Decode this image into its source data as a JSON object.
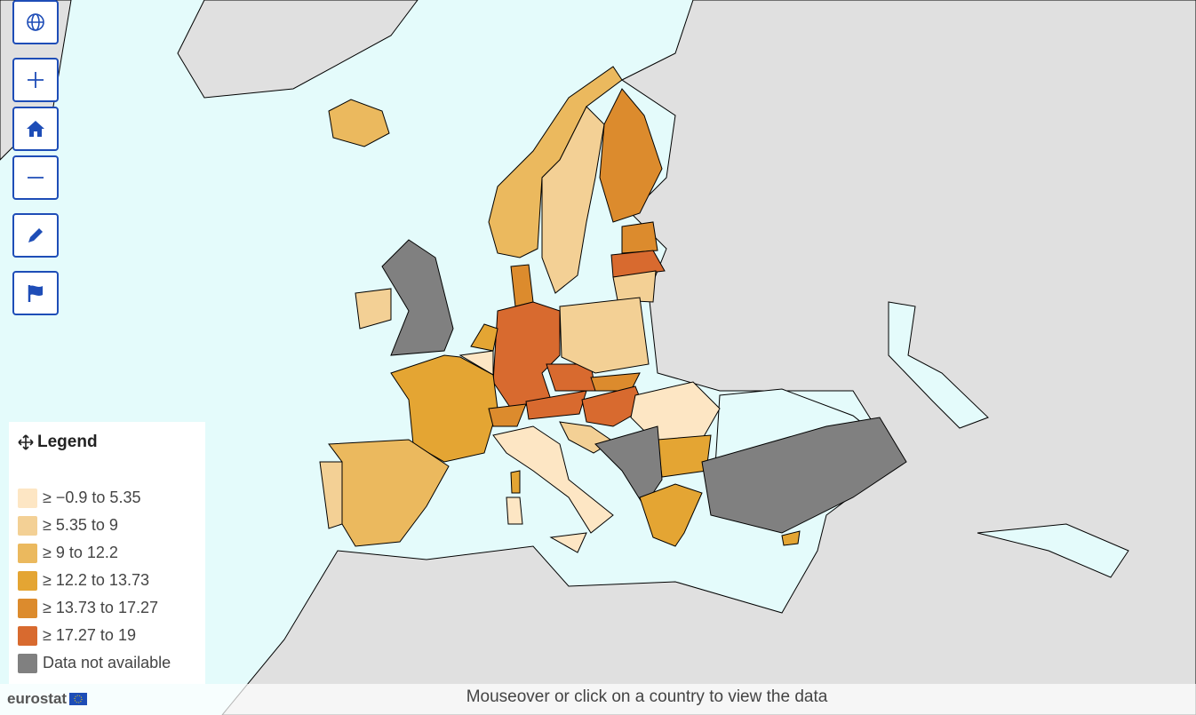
{
  "legend": {
    "title": "Legend",
    "items": [
      {
        "label": "≥ −0.9 to 5.35",
        "color": "#fde6c4"
      },
      {
        "label": "≥ 5.35 to 9",
        "color": "#f3d095"
      },
      {
        "label": "≥ 9 to 12.2",
        "color": "#ebb95e"
      },
      {
        "label": "≥ 12.2 to 13.73",
        "color": "#e4a533"
      },
      {
        "label": "≥ 13.73 to 17.27",
        "color": "#dc8b2d"
      },
      {
        "label": "≥ 17.27 to 19",
        "color": "#d86a2f"
      },
      {
        "label": "Data not available",
        "color": "#808080"
      }
    ]
  },
  "footer": {
    "text": "Mouseover or click on a country to view the data",
    "logo": "eurostat"
  }
}
